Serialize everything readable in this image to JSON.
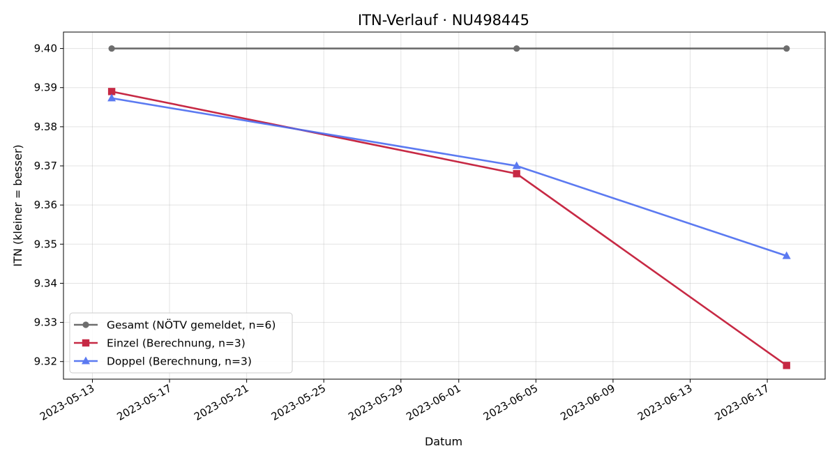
{
  "chart_data": {
    "type": "line",
    "title": "ITN-Verlauf · NU498445",
    "xlabel": "Datum",
    "ylabel": "ITN  (kleiner = besser)",
    "x_tick_labels": [
      "2023-05-13",
      "2023-05-17",
      "2023-05-21",
      "2023-05-25",
      "2023-05-29",
      "2023-06-01",
      "2023-06-05",
      "2023-06-09",
      "2023-06-13",
      "2023-06-17"
    ],
    "y_ticks": [
      9.32,
      9.33,
      9.34,
      9.35,
      9.36,
      9.37,
      9.38,
      9.39,
      9.4
    ],
    "y_tick_labels": [
      "9.32",
      "9.33",
      "9.34",
      "9.35",
      "9.36",
      "9.37",
      "9.38",
      "9.39",
      "9.40"
    ],
    "xlim": [
      "2023-05-11T12:00",
      "2023-06-20"
    ],
    "ylim": [
      9.3155,
      9.4042
    ],
    "grid": true,
    "legend_position": "lower-left",
    "series": [
      {
        "name": "Gesamt (NÖTV gemeldet, n=6)",
        "color": "#555555",
        "marker": "circle",
        "x": [
          "2023-05-14",
          "2023-06-04",
          "2023-06-18"
        ],
        "values": [
          9.4,
          9.4,
          9.4
        ]
      },
      {
        "name": "Einzel (Berechnung, n=3)",
        "color": "#c41e3a",
        "marker": "square",
        "x": [
          "2023-05-14",
          "2023-06-04",
          "2023-06-18"
        ],
        "values": [
          9.389,
          9.368,
          9.319
        ]
      },
      {
        "name": "Doppel (Berechnung, n=3)",
        "color": "#4a6cf0",
        "marker": "triangle",
        "x": [
          "2023-05-14",
          "2023-06-04",
          "2023-06-18"
        ],
        "values": [
          9.3873,
          9.37,
          9.347
        ]
      }
    ]
  }
}
